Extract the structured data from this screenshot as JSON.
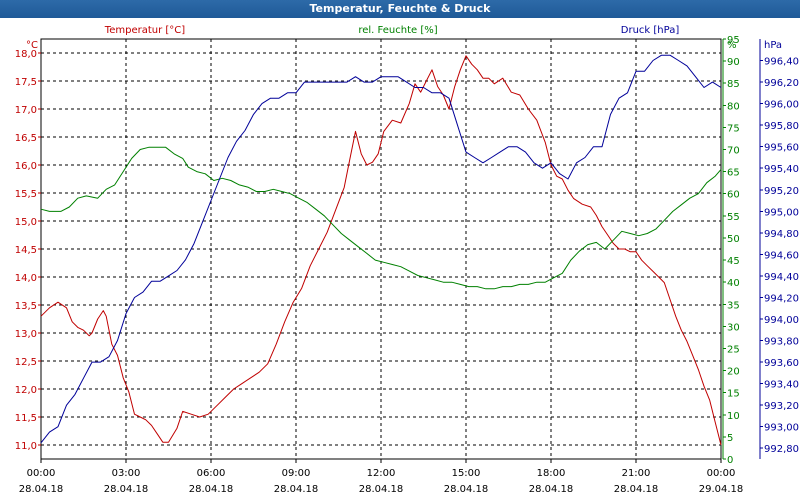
{
  "window": {
    "title": "Temperatur, Feuchte & Druck"
  },
  "colors": {
    "temperature": "#c00000",
    "humidity": "#008000",
    "pressure": "#000099",
    "grid": "#000000",
    "axis": "#000000"
  },
  "chart_data": {
    "type": "line",
    "title": "Temperatur, Feuchte & Druck",
    "x_labels": [
      {
        "time": "00:00",
        "date": "28.04.18"
      },
      {
        "time": "03:00",
        "date": "28.04.18"
      },
      {
        "time": "06:00",
        "date": "28.04.18"
      },
      {
        "time": "09:00",
        "date": "28.04.18"
      },
      {
        "time": "12:00",
        "date": "28.04.18"
      },
      {
        "time": "15:00",
        "date": "28.04.18"
      },
      {
        "time": "18:00",
        "date": "28.04.18"
      },
      {
        "time": "21:00",
        "date": "28.04.18"
      },
      {
        "time": "00:00",
        "date": "29.04.18"
      }
    ],
    "xlim_hours": [
      0,
      24
    ],
    "axes": {
      "temperature": {
        "label": "Temperatur [°C]",
        "unit": "°C",
        "ylim": [
          10.75,
          18.25
        ],
        "ticks": [
          "11,0",
          "11,5",
          "12,0",
          "12,5",
          "13,0",
          "13,5",
          "14,0",
          "14,5",
          "15,0",
          "15,5",
          "16,0",
          "16,5",
          "17,0",
          "17,5",
          "18,0"
        ]
      },
      "humidity": {
        "label": "rel. Feuchte [%]",
        "unit": "%",
        "ylim": [
          0,
          95
        ],
        "ticks": [
          "0",
          "5",
          "10",
          "15",
          "20",
          "25",
          "30",
          "35",
          "40",
          "45",
          "50",
          "55",
          "60",
          "65",
          "70",
          "75",
          "80",
          "85",
          "90",
          "95"
        ]
      },
      "pressure": {
        "label": "Druck [hPa]",
        "unit": "hPa",
        "ylim": [
          992.7,
          996.6
        ],
        "ticks": [
          "992,80",
          "993,00",
          "993,20",
          "993,40",
          "993,60",
          "993,80",
          "994,00",
          "994,20",
          "994,40",
          "994,60",
          "994,80",
          "995,00",
          "995,20",
          "995,40",
          "995,60",
          "995,80",
          "996,00",
          "996,20",
          "996,40"
        ]
      }
    },
    "series": [
      {
        "name": "Temperatur [°C]",
        "axis": "temperature",
        "points": [
          [
            0,
            13.3
          ],
          [
            0.3,
            13.45
          ],
          [
            0.6,
            13.55
          ],
          [
            0.9,
            13.45
          ],
          [
            1.1,
            13.2
          ],
          [
            1.3,
            13.1
          ],
          [
            1.5,
            13.05
          ],
          [
            1.7,
            12.95
          ],
          [
            1.8,
            13.0
          ],
          [
            2.0,
            13.25
          ],
          [
            2.2,
            13.4
          ],
          [
            2.3,
            13.3
          ],
          [
            2.5,
            12.8
          ],
          [
            2.7,
            12.6
          ],
          [
            2.9,
            12.2
          ],
          [
            3.1,
            11.95
          ],
          [
            3.3,
            11.55
          ],
          [
            3.5,
            11.5
          ],
          [
            3.7,
            11.45
          ],
          [
            3.9,
            11.35
          ],
          [
            4.1,
            11.2
          ],
          [
            4.3,
            11.05
          ],
          [
            4.5,
            11.05
          ],
          [
            4.8,
            11.3
          ],
          [
            5.0,
            11.6
          ],
          [
            5.3,
            11.55
          ],
          [
            5.6,
            11.5
          ],
          [
            5.9,
            11.55
          ],
          [
            6.2,
            11.7
          ],
          [
            6.5,
            11.85
          ],
          [
            6.8,
            12.0
          ],
          [
            7.1,
            12.1
          ],
          [
            7.4,
            12.2
          ],
          [
            7.7,
            12.3
          ],
          [
            8.0,
            12.45
          ],
          [
            8.3,
            12.8
          ],
          [
            8.6,
            13.2
          ],
          [
            8.9,
            13.55
          ],
          [
            9.2,
            13.8
          ],
          [
            9.5,
            14.2
          ],
          [
            9.8,
            14.5
          ],
          [
            10.1,
            14.8
          ],
          [
            10.4,
            15.2
          ],
          [
            10.7,
            15.6
          ],
          [
            10.9,
            16.1
          ],
          [
            11.1,
            16.6
          ],
          [
            11.3,
            16.2
          ],
          [
            11.5,
            16.0
          ],
          [
            11.7,
            16.05
          ],
          [
            11.9,
            16.2
          ],
          [
            12.1,
            16.6
          ],
          [
            12.4,
            16.8
          ],
          [
            12.7,
            16.75
          ],
          [
            13.0,
            17.1
          ],
          [
            13.2,
            17.45
          ],
          [
            13.4,
            17.3
          ],
          [
            13.6,
            17.5
          ],
          [
            13.8,
            17.7
          ],
          [
            14.0,
            17.4
          ],
          [
            14.2,
            17.25
          ],
          [
            14.4,
            17.0
          ],
          [
            14.6,
            17.4
          ],
          [
            14.8,
            17.7
          ],
          [
            15.0,
            17.95
          ],
          [
            15.2,
            17.8
          ],
          [
            15.4,
            17.7
          ],
          [
            15.6,
            17.55
          ],
          [
            15.8,
            17.55
          ],
          [
            16.0,
            17.45
          ],
          [
            16.3,
            17.55
          ],
          [
            16.6,
            17.3
          ],
          [
            16.9,
            17.25
          ],
          [
            17.2,
            17.0
          ],
          [
            17.5,
            16.8
          ],
          [
            17.8,
            16.4
          ],
          [
            18.0,
            16.0
          ],
          [
            18.2,
            15.8
          ],
          [
            18.4,
            15.75
          ],
          [
            18.6,
            15.55
          ],
          [
            18.8,
            15.4
          ],
          [
            19.1,
            15.3
          ],
          [
            19.4,
            15.25
          ],
          [
            19.6,
            15.1
          ],
          [
            19.8,
            14.9
          ],
          [
            20.0,
            14.75
          ],
          [
            20.2,
            14.6
          ],
          [
            20.4,
            14.5
          ],
          [
            20.6,
            14.5
          ],
          [
            20.8,
            14.45
          ],
          [
            21.0,
            14.45
          ],
          [
            21.2,
            14.3
          ],
          [
            21.4,
            14.2
          ],
          [
            21.6,
            14.1
          ],
          [
            21.8,
            14.0
          ],
          [
            22.0,
            13.9
          ],
          [
            22.2,
            13.6
          ],
          [
            22.4,
            13.3
          ],
          [
            22.6,
            13.05
          ],
          [
            22.8,
            12.85
          ],
          [
            23.0,
            12.6
          ],
          [
            23.2,
            12.35
          ],
          [
            23.4,
            12.05
          ],
          [
            23.6,
            11.8
          ],
          [
            23.8,
            11.4
          ],
          [
            24.0,
            11.0
          ]
        ]
      },
      {
        "name": "rel. Feuchte [%]",
        "axis": "humidity",
        "points": [
          [
            0,
            56.5
          ],
          [
            0.3,
            56
          ],
          [
            0.7,
            56
          ],
          [
            1.0,
            57
          ],
          [
            1.3,
            59
          ],
          [
            1.6,
            59.5
          ],
          [
            2.0,
            59
          ],
          [
            2.3,
            61
          ],
          [
            2.6,
            62
          ],
          [
            2.9,
            65
          ],
          [
            3.2,
            68
          ],
          [
            3.5,
            70
          ],
          [
            3.8,
            70.5
          ],
          [
            4.1,
            70.5
          ],
          [
            4.4,
            70.5
          ],
          [
            4.7,
            69
          ],
          [
            5.0,
            68
          ],
          [
            5.2,
            66
          ],
          [
            5.5,
            65
          ],
          [
            5.8,
            64.5
          ],
          [
            6.1,
            63
          ],
          [
            6.4,
            63.5
          ],
          [
            6.7,
            63
          ],
          [
            7.0,
            62
          ],
          [
            7.3,
            61.5
          ],
          [
            7.6,
            60.5
          ],
          [
            7.9,
            60.5
          ],
          [
            8.2,
            61
          ],
          [
            8.5,
            60.5
          ],
          [
            8.8,
            60
          ],
          [
            9.1,
            59
          ],
          [
            9.4,
            58
          ],
          [
            9.7,
            56.5
          ],
          [
            10.0,
            55
          ],
          [
            10.3,
            53
          ],
          [
            10.6,
            51
          ],
          [
            10.9,
            49.5
          ],
          [
            11.2,
            48
          ],
          [
            11.5,
            46.5
          ],
          [
            11.8,
            45
          ],
          [
            12.1,
            44.5
          ],
          [
            12.4,
            44
          ],
          [
            12.7,
            43.5
          ],
          [
            13.0,
            42.5
          ],
          [
            13.3,
            41.5
          ],
          [
            13.6,
            41
          ],
          [
            13.9,
            40.5
          ],
          [
            14.2,
            40
          ],
          [
            14.5,
            40
          ],
          [
            14.8,
            39.5
          ],
          [
            15.1,
            39
          ],
          [
            15.4,
            39
          ],
          [
            15.7,
            38.5
          ],
          [
            16.0,
            38.5
          ],
          [
            16.3,
            39
          ],
          [
            16.6,
            39
          ],
          [
            16.9,
            39.5
          ],
          [
            17.2,
            39.5
          ],
          [
            17.5,
            40
          ],
          [
            17.8,
            40
          ],
          [
            18.1,
            41
          ],
          [
            18.4,
            42
          ],
          [
            18.7,
            45
          ],
          [
            19.0,
            47
          ],
          [
            19.3,
            48.5
          ],
          [
            19.6,
            49
          ],
          [
            19.9,
            47.5
          ],
          [
            20.2,
            49.5
          ],
          [
            20.5,
            51.5
          ],
          [
            20.8,
            51
          ],
          [
            21.1,
            50.5
          ],
          [
            21.4,
            51
          ],
          [
            21.7,
            52
          ],
          [
            22.0,
            54
          ],
          [
            22.3,
            56
          ],
          [
            22.6,
            57.5
          ],
          [
            22.9,
            59
          ],
          [
            23.2,
            60
          ],
          [
            23.5,
            62.5
          ],
          [
            23.8,
            64
          ],
          [
            24.0,
            65.5
          ]
        ]
      },
      {
        "name": "Druck [hPa]",
        "axis": "pressure",
        "points": [
          [
            0,
            992.85
          ],
          [
            0.3,
            992.95
          ],
          [
            0.6,
            993.0
          ],
          [
            0.9,
            993.2
          ],
          [
            1.2,
            993.3
          ],
          [
            1.5,
            993.45
          ],
          [
            1.8,
            993.6
          ],
          [
            2.1,
            993.6
          ],
          [
            2.4,
            993.65
          ],
          [
            2.7,
            993.8
          ],
          [
            3.0,
            994.05
          ],
          [
            3.3,
            994.2
          ],
          [
            3.6,
            994.25
          ],
          [
            3.9,
            994.35
          ],
          [
            4.2,
            994.35
          ],
          [
            4.5,
            994.4
          ],
          [
            4.8,
            994.45
          ],
          [
            5.1,
            994.55
          ],
          [
            5.4,
            994.7
          ],
          [
            5.7,
            994.9
          ],
          [
            6.0,
            995.1
          ],
          [
            6.3,
            995.3
          ],
          [
            6.6,
            995.5
          ],
          [
            6.9,
            995.65
          ],
          [
            7.2,
            995.75
          ],
          [
            7.5,
            995.9
          ],
          [
            7.8,
            996.0
          ],
          [
            8.1,
            996.05
          ],
          [
            8.4,
            996.05
          ],
          [
            8.7,
            996.1
          ],
          [
            9.0,
            996.1
          ],
          [
            9.3,
            996.2
          ],
          [
            9.6,
            996.2
          ],
          [
            9.9,
            996.2
          ],
          [
            10.2,
            996.2
          ],
          [
            10.5,
            996.2
          ],
          [
            10.8,
            996.2
          ],
          [
            11.1,
            996.25
          ],
          [
            11.4,
            996.2
          ],
          [
            11.7,
            996.2
          ],
          [
            12.0,
            996.25
          ],
          [
            12.3,
            996.25
          ],
          [
            12.6,
            996.25
          ],
          [
            12.9,
            996.2
          ],
          [
            13.2,
            996.15
          ],
          [
            13.5,
            996.15
          ],
          [
            13.8,
            996.1
          ],
          [
            14.1,
            996.1
          ],
          [
            14.4,
            996.05
          ],
          [
            14.7,
            995.8
          ],
          [
            15.0,
            995.55
          ],
          [
            15.3,
            995.5
          ],
          [
            15.6,
            995.45
          ],
          [
            15.9,
            995.5
          ],
          [
            16.2,
            995.55
          ],
          [
            16.5,
            995.6
          ],
          [
            16.8,
            995.6
          ],
          [
            17.1,
            995.55
          ],
          [
            17.4,
            995.45
          ],
          [
            17.7,
            995.4
          ],
          [
            18.0,
            995.45
          ],
          [
            18.3,
            995.35
          ],
          [
            18.6,
            995.3
          ],
          [
            18.9,
            995.45
          ],
          [
            19.2,
            995.5
          ],
          [
            19.5,
            995.6
          ],
          [
            19.8,
            995.6
          ],
          [
            20.1,
            995.9
          ],
          [
            20.4,
            996.05
          ],
          [
            20.7,
            996.1
          ],
          [
            21.0,
            996.3
          ],
          [
            21.3,
            996.3
          ],
          [
            21.6,
            996.4
          ],
          [
            21.9,
            996.45
          ],
          [
            22.2,
            996.45
          ],
          [
            22.5,
            996.4
          ],
          [
            22.8,
            996.35
          ],
          [
            23.1,
            996.25
          ],
          [
            23.4,
            996.15
          ],
          [
            23.7,
            996.2
          ],
          [
            24.0,
            996.15
          ]
        ]
      }
    ]
  }
}
